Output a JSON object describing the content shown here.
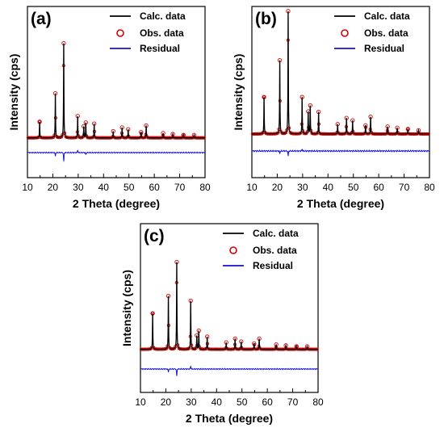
{
  "chart_data": [
    {
      "type": "line",
      "panel_label": "(a)",
      "xlabel": "2 Theta (degree)",
      "ylabel": "Intensity (cps)",
      "xlim": [
        10,
        80
      ],
      "xticks": [
        "10",
        "20",
        "30",
        "40",
        "50",
        "60",
        "70",
        "80"
      ],
      "legend": {
        "position": "top-right",
        "entries": [
          "Calc. data",
          "Obs. data",
          "Residual"
        ]
      },
      "background": 0.045,
      "peaks": [
        {
          "x": 14.8,
          "y": 0.17
        },
        {
          "x": 21.0,
          "y": 0.47
        },
        {
          "x": 24.3,
          "y": 1.0
        },
        {
          "x": 29.8,
          "y": 0.23
        },
        {
          "x": 32.2,
          "y": 0.12
        },
        {
          "x": 33.0,
          "y": 0.16
        },
        {
          "x": 36.3,
          "y": 0.15
        },
        {
          "x": 43.8,
          "y": 0.07
        },
        {
          "x": 47.3,
          "y": 0.11
        },
        {
          "x": 49.7,
          "y": 0.09
        },
        {
          "x": 54.8,
          "y": 0.06
        },
        {
          "x": 56.8,
          "y": 0.13
        },
        {
          "x": 63.5,
          "y": 0.05
        },
        {
          "x": 67.3,
          "y": 0.04
        },
        {
          "x": 71.5,
          "y": 0.03
        },
        {
          "x": 75.7,
          "y": 0.03
        }
      ],
      "residual_spikes": [
        {
          "x": 21.0,
          "y": -0.035
        },
        {
          "x": 24.3,
          "y": -0.09
        },
        {
          "x": 29.8,
          "y": 0.025
        },
        {
          "x": 33.0,
          "y": -0.02
        }
      ]
    },
    {
      "type": "line",
      "panel_label": "(b)",
      "xlabel": "2 Theta (degree)",
      "ylabel": "Intensity (cps)",
      "xlim": [
        10,
        80
      ],
      "xticks": [
        "10",
        "20",
        "30",
        "40",
        "50",
        "60",
        "70",
        "80"
      ],
      "legend": {
        "position": "top-right",
        "entries": [
          "Calc. data",
          "Obs. data",
          "Residual"
        ]
      },
      "background": 0.04,
      "peaks": [
        {
          "x": 14.8,
          "y": 0.3
        },
        {
          "x": 21.0,
          "y": 0.6
        },
        {
          "x": 24.3,
          "y": 1.0
        },
        {
          "x": 29.8,
          "y": 0.3
        },
        {
          "x": 32.2,
          "y": 0.18
        },
        {
          "x": 33.0,
          "y": 0.23
        },
        {
          "x": 36.3,
          "y": 0.18
        },
        {
          "x": 43.8,
          "y": 0.08
        },
        {
          "x": 47.3,
          "y": 0.13
        },
        {
          "x": 49.7,
          "y": 0.11
        },
        {
          "x": 54.8,
          "y": 0.07
        },
        {
          "x": 56.8,
          "y": 0.14
        },
        {
          "x": 63.5,
          "y": 0.06
        },
        {
          "x": 67.3,
          "y": 0.05
        },
        {
          "x": 71.5,
          "y": 0.04
        },
        {
          "x": 75.7,
          "y": 0.03
        }
      ],
      "residual_spikes": [
        {
          "x": 21.0,
          "y": -0.02
        },
        {
          "x": 24.3,
          "y": -0.04
        },
        {
          "x": 29.8,
          "y": 0.015
        }
      ]
    },
    {
      "type": "line",
      "panel_label": "(c)",
      "xlabel": "2 Theta (degree)",
      "ylabel": "Intensity (cps)",
      "xlim": [
        10,
        80
      ],
      "xticks": [
        "10",
        "20",
        "30",
        "40",
        "50",
        "60",
        "70",
        "80"
      ],
      "legend": {
        "position": "top-right",
        "entries": [
          "Calc. data",
          "Obs. data",
          "Residual"
        ]
      },
      "background": 0.045,
      "peaks": [
        {
          "x": 14.8,
          "y": 0.37
        },
        {
          "x": 21.0,
          "y": 0.55
        },
        {
          "x": 24.3,
          "y": 0.9
        },
        {
          "x": 29.8,
          "y": 0.5
        },
        {
          "x": 32.2,
          "y": 0.14
        },
        {
          "x": 33.0,
          "y": 0.19
        },
        {
          "x": 36.3,
          "y": 0.13
        },
        {
          "x": 43.8,
          "y": 0.07
        },
        {
          "x": 47.3,
          "y": 0.11
        },
        {
          "x": 49.7,
          "y": 0.08
        },
        {
          "x": 54.8,
          "y": 0.06
        },
        {
          "x": 56.8,
          "y": 0.11
        },
        {
          "x": 63.5,
          "y": 0.05
        },
        {
          "x": 67.3,
          "y": 0.04
        },
        {
          "x": 71.5,
          "y": 0.03
        },
        {
          "x": 75.7,
          "y": 0.03
        }
      ],
      "residual_spikes": [
        {
          "x": 21.0,
          "y": -0.03
        },
        {
          "x": 24.3,
          "y": -0.07
        },
        {
          "x": 29.8,
          "y": 0.03
        }
      ]
    }
  ],
  "colors": {
    "calc": "#000000",
    "obs": "#d10000",
    "residual": "#1111cc",
    "axis": "#000000"
  }
}
